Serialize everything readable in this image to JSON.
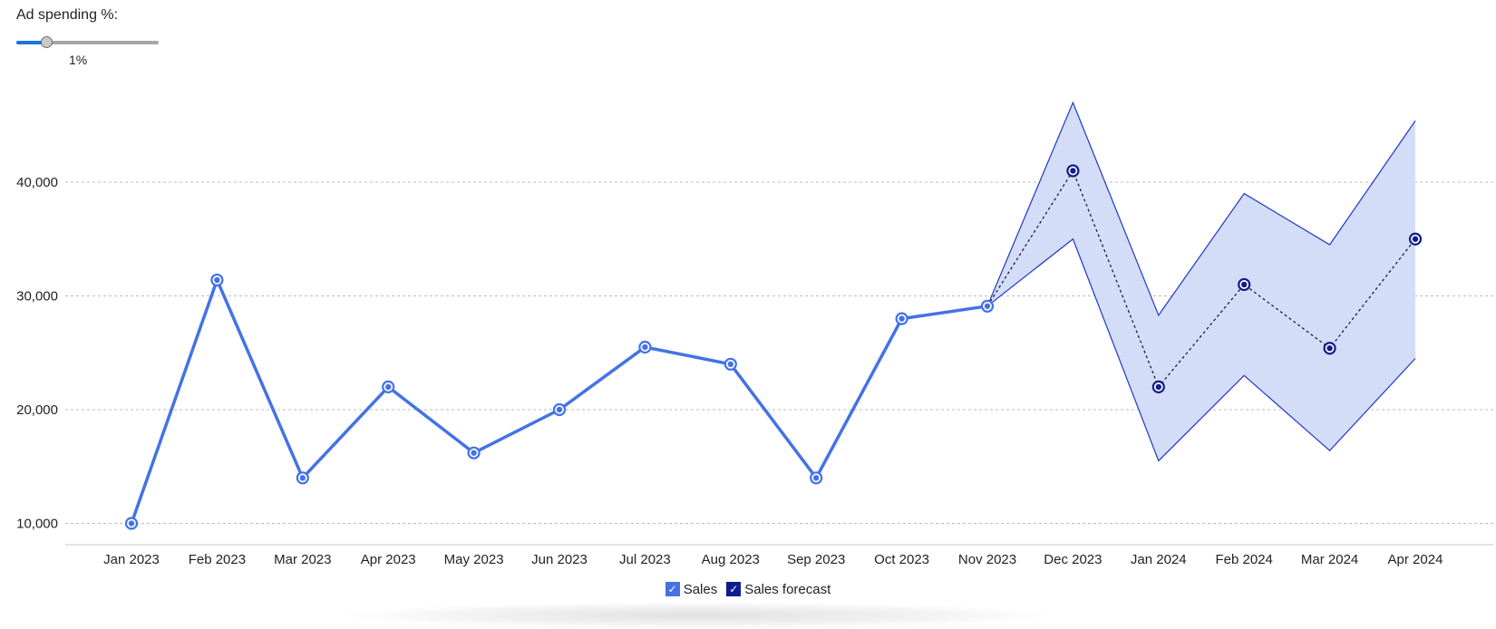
{
  "control": {
    "label": "Ad spending %:",
    "value_label": "1%",
    "value": 1,
    "min": 0,
    "max": 10
  },
  "chart_data": {
    "type": "line",
    "title": "",
    "xlabel": "",
    "ylabel": "",
    "ylim": [
      9000,
      48000
    ],
    "yticks": [
      10000,
      20000,
      30000,
      40000
    ],
    "ytick_labels": [
      "10,000",
      "20,000",
      "30,000",
      "40,000"
    ],
    "grid": true,
    "legend_position": "bottom-center",
    "categories": [
      "Jan 2023",
      "Feb 2023",
      "Mar 2023",
      "Apr 2023",
      "May 2023",
      "Jun 2023",
      "Jul 2023",
      "Aug 2023",
      "Sep 2023",
      "Oct 2023",
      "Nov 2023",
      "Dec 2023",
      "Jan 2024",
      "Feb 2024",
      "Mar 2024",
      "Apr 2024"
    ],
    "series": [
      {
        "name": "Sales",
        "color": "#4472e6",
        "style": "solid",
        "values": [
          10000,
          31400,
          14000,
          22000,
          16200,
          20000,
          25500,
          24000,
          14000,
          28000,
          29100,
          null,
          null,
          null,
          null,
          null
        ]
      },
      {
        "name": "Sales forecast",
        "color": "#0f1d8c",
        "style": "dotted",
        "values": [
          null,
          null,
          null,
          null,
          null,
          null,
          null,
          null,
          null,
          null,
          29100,
          41000,
          22000,
          31000,
          25400,
          35000
        ],
        "band_upper": [
          null,
          null,
          null,
          null,
          null,
          null,
          null,
          null,
          null,
          null,
          29100,
          47000,
          28300,
          39000,
          34500,
          45400
        ],
        "band_lower": [
          null,
          null,
          null,
          null,
          null,
          null,
          null,
          null,
          null,
          null,
          29100,
          35000,
          15500,
          23000,
          16400,
          24500
        ],
        "band_color": "#d4ddf8",
        "band_line_color": "#1f36c9"
      }
    ]
  }
}
